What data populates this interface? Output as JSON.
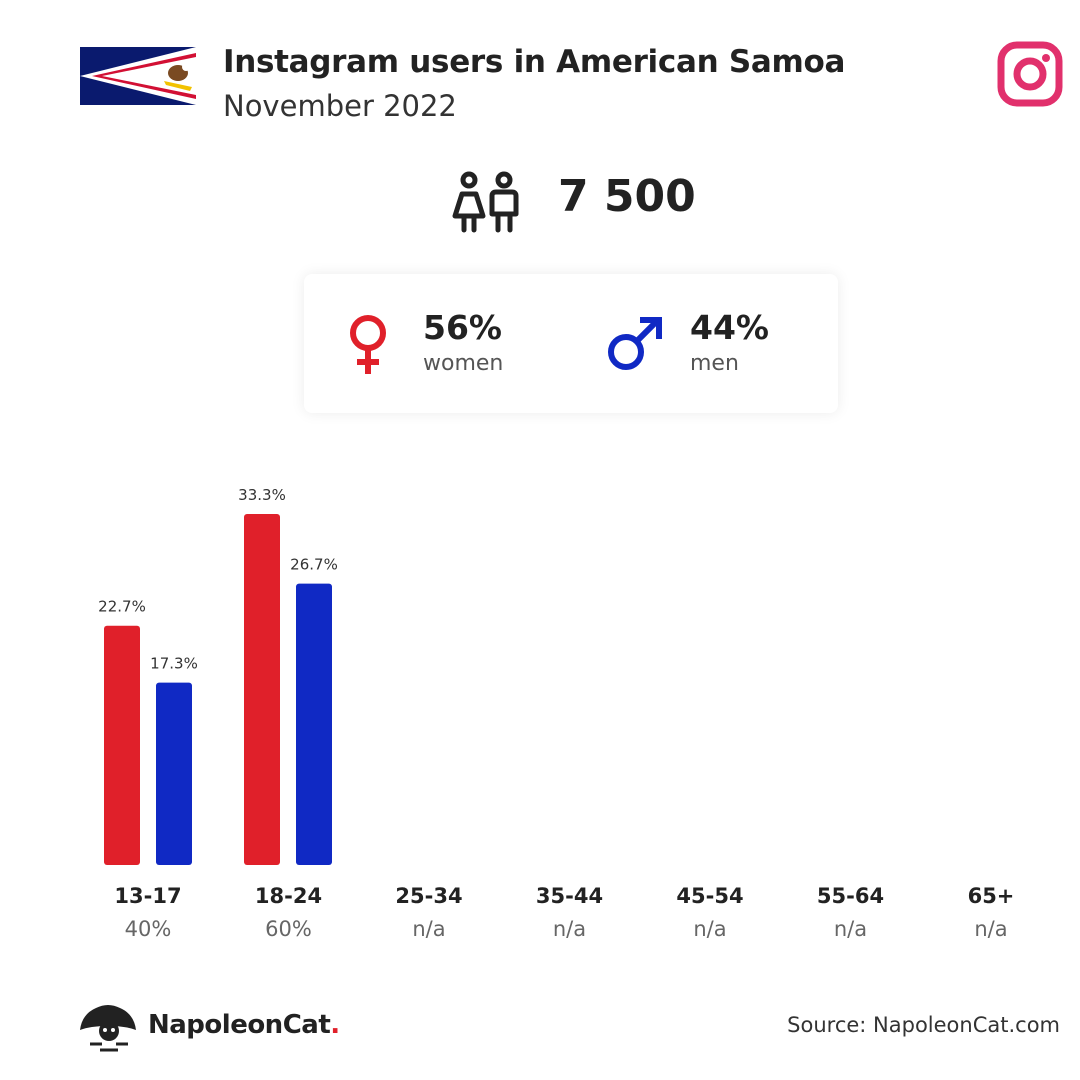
{
  "header": {
    "title": "Instagram users in American Samoa",
    "subtitle": "November 2022"
  },
  "total_users": "7 500",
  "gender": {
    "women_pct": "56%",
    "women_label": "women",
    "men_pct": "44%",
    "men_label": "men"
  },
  "age_groups": [
    {
      "label": "13-17",
      "share": "40%"
    },
    {
      "label": "18-24",
      "share": "60%"
    },
    {
      "label": "25-34",
      "share": "n/a"
    },
    {
      "label": "35-44",
      "share": "n/a"
    },
    {
      "label": "45-54",
      "share": "n/a"
    },
    {
      "label": "55-64",
      "share": "n/a"
    },
    {
      "label": "65+",
      "share": "n/a"
    }
  ],
  "colors": {
    "women": "#e0202a",
    "men": "#1029c4",
    "instagram": "#e1306c"
  },
  "icons": [
    "american-samoa-flag",
    "instagram-icon",
    "users-icon",
    "female-symbol-icon",
    "male-symbol-icon",
    "napoleoncat-logo-icon"
  ],
  "chart_data": {
    "type": "bar",
    "categories": [
      "13-17",
      "18-24",
      "25-34",
      "35-44",
      "45-54",
      "55-64",
      "65+"
    ],
    "series": [
      {
        "name": "women",
        "values": [
          22.7,
          33.3,
          null,
          null,
          null,
          null,
          null
        ],
        "labels": [
          "22.7%",
          "33.3%",
          null,
          null,
          null,
          null,
          null
        ]
      },
      {
        "name": "men",
        "values": [
          17.3,
          26.7,
          null,
          null,
          null,
          null,
          null
        ],
        "labels": [
          "17.3%",
          "26.7%",
          null,
          null,
          null,
          null,
          null
        ]
      }
    ],
    "ylim": [
      0,
      33.3
    ],
    "grid": false
  },
  "footer": {
    "brand": "NapoleonCat",
    "brand_dot": ".",
    "source": "Source: NapoleonCat.com"
  }
}
